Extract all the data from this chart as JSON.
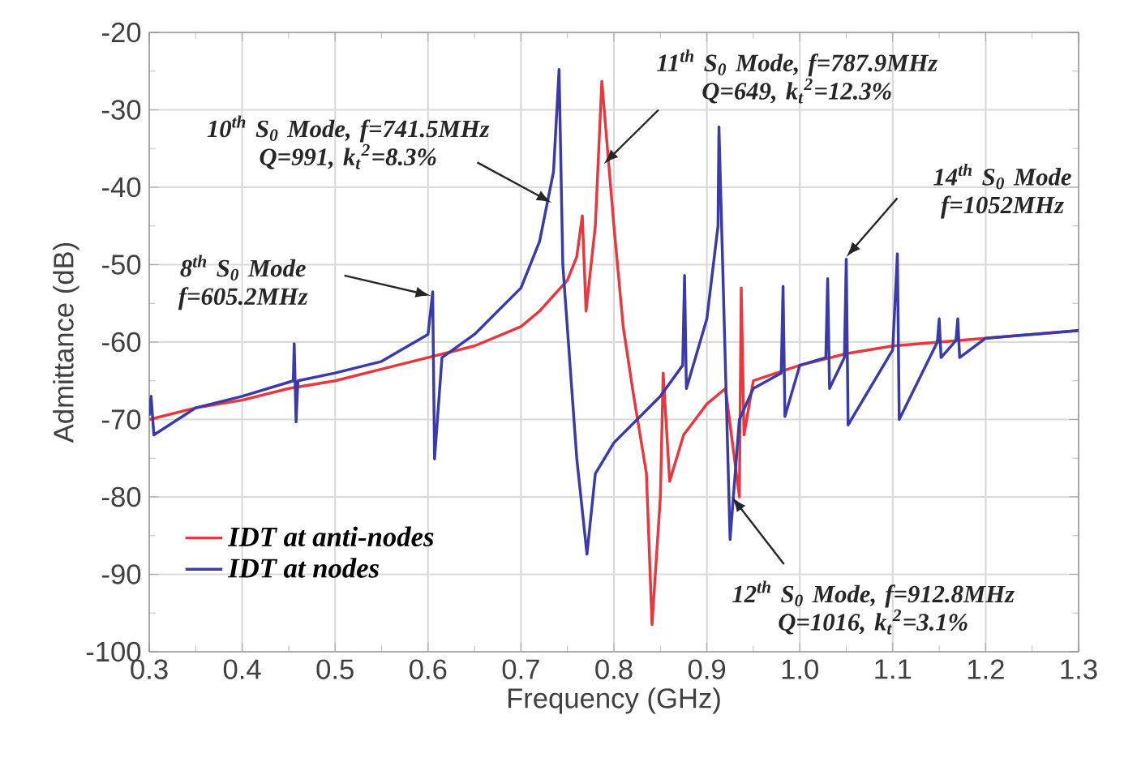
{
  "chart_data": {
    "type": "line",
    "xlabel": "Frequency (GHz)",
    "ylabel": "Admittance (dB)",
    "xlim": [
      0.3,
      1.3
    ],
    "ylim": [
      -100,
      -20
    ],
    "xticks": [
      0.3,
      0.4,
      0.5,
      0.6,
      0.7,
      0.8,
      0.9,
      {
        "value": 1.0,
        "label": "1.0"
      },
      1.1,
      1.2,
      1.3
    ],
    "yticks": [
      -100,
      -90,
      -80,
      -70,
      -60,
      -50,
      -40,
      -30,
      -20
    ],
    "grid": true,
    "legend": "bottom left",
    "series": [
      {
        "name": "IDT at anti-nodes",
        "color": "#e8383d",
        "x": [
          0.3,
          0.35,
          0.4,
          0.45,
          0.5,
          0.55,
          0.6,
          0.65,
          0.7,
          0.72,
          0.75,
          0.76,
          0.766,
          0.77,
          0.78,
          0.787,
          0.8,
          0.81,
          0.82,
          0.835,
          0.841,
          0.85,
          0.853,
          0.86,
          0.875,
          0.9,
          0.92,
          0.935,
          0.937,
          0.94,
          0.95,
          1.0,
          1.05,
          1.1,
          1.2,
          1.3
        ],
        "values": [
          -70,
          -68.5,
          -67.5,
          -66,
          -65,
          -63.5,
          -62,
          -60.5,
          -58,
          -56,
          -52,
          -49,
          -43.7,
          -56,
          -45,
          -26.3,
          -45,
          -58,
          -66,
          -77,
          -96.5,
          -80,
          -64,
          -78,
          -72,
          -68,
          -66,
          -80,
          -53,
          -72,
          -65,
          -63,
          -61.5,
          -60.5,
          -59.5,
          -58.5
        ]
      },
      {
        "name": "IDT at nodes",
        "color": "#3a3aa8",
        "x": [
          0.3,
          0.302,
          0.305,
          0.35,
          0.4,
          0.455,
          0.456,
          0.458,
          0.46,
          0.5,
          0.55,
          0.6,
          0.605,
          0.607,
          0.615,
          0.65,
          0.7,
          0.72,
          0.735,
          0.741,
          0.745,
          0.76,
          0.771,
          0.78,
          0.8,
          0.85,
          0.874,
          0.876,
          0.878,
          0.9,
          0.912,
          0.913,
          0.925,
          0.935,
          0.95,
          0.98,
          0.982,
          0.984,
          1.0,
          1.028,
          1.03,
          1.032,
          1.048,
          1.05,
          1.052,
          1.1,
          1.105,
          1.107,
          1.148,
          1.15,
          1.152,
          1.168,
          1.17,
          1.172,
          1.2,
          1.3
        ],
        "values": [
          -69.5,
          -67,
          -72,
          -68.5,
          -67,
          -65,
          -60.2,
          -70.3,
          -65,
          -64,
          -62.5,
          -59,
          -53.5,
          -75.1,
          -62,
          -59,
          -53,
          -47,
          -38,
          -24.8,
          -50,
          -75,
          -87.4,
          -77,
          -73,
          -67,
          -63,
          -51.4,
          -66,
          -57,
          -45,
          -32.2,
          -85.5,
          -70,
          -66,
          -64,
          -52.8,
          -69.6,
          -63,
          -62,
          -51.8,
          -66,
          -62,
          -49.3,
          -70.7,
          -61,
          -48.6,
          -70,
          -60,
          -57,
          -62,
          -59.8,
          -57,
          -62,
          -59.5,
          -58.5
        ]
      }
    ],
    "annotations": [
      "8$^{th}$ S$_{0}$ Mode f=605.2MHz",
      "10$^{th}$ S$_{0}$ Mode, f=741.5MHz Q=991, k$_{t}$$^{2}$=8.3%",
      "11$^{th}$ S$_{0}$ Mode, f=787.9MHz Q=649, k$_{t}$$^{2}$=12.3%",
      "14$^{th}$ S$_{0}$ Mode f=1052MHz",
      "12$^{th}$ S$_{0}$ Mode, f=912.8MHz Q=1016, k$_{t}$$^{2}$=3.1%"
    ]
  }
}
